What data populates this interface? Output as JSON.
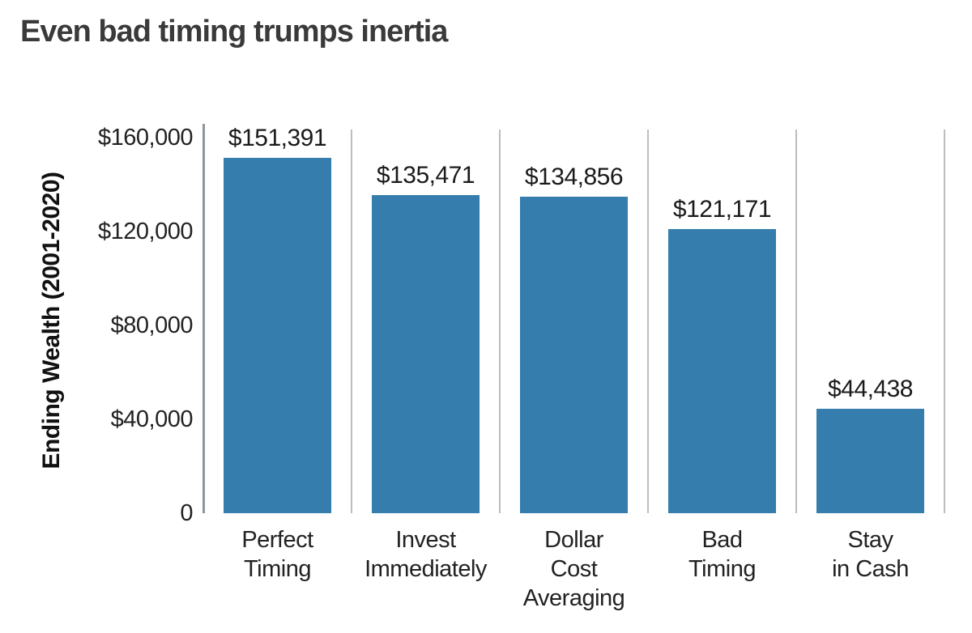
{
  "title": "Even bad timing trumps inertia",
  "chart_data": {
    "type": "bar",
    "title": "Even bad timing trumps inertia",
    "ylabel": "Ending Wealth (2001-2020)",
    "xlabel": "",
    "ylim": [
      0,
      160000
    ],
    "grid": "vertical-gridlines-only",
    "legend": "none",
    "categories": [
      [
        "Perfect",
        "Timing"
      ],
      [
        "Invest",
        "Immediately"
      ],
      [
        "Dollar",
        "Cost",
        "Averaging"
      ],
      [
        "Bad",
        "Timing"
      ],
      [
        "Stay",
        "in Cash"
      ]
    ],
    "values": [
      151391,
      135471,
      134856,
      121171,
      44438
    ],
    "value_labels": [
      "$151,391",
      "$135,471",
      "$134,856",
      "$121,171",
      "$44,438"
    ],
    "yticks": [
      {
        "value": 160000,
        "label": "$160,000"
      },
      {
        "value": 120000,
        "label": "$120,000"
      },
      {
        "value": 80000,
        "label": "$80,000"
      },
      {
        "value": 40000,
        "label": "$40,000"
      },
      {
        "value": 0,
        "label": "0"
      }
    ],
    "colors": {
      "bar": "#347dac",
      "axis_line": "#8e959b",
      "gridline": "#b9bec3",
      "label_text": "#222222",
      "title_text": "#3a3a3a"
    }
  }
}
